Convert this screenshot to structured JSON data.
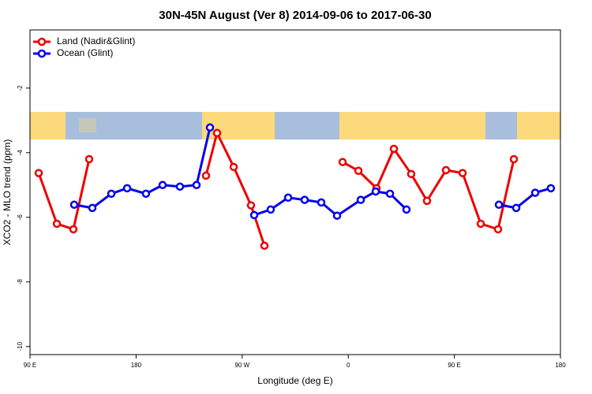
{
  "chart_data": {
    "type": "line",
    "title": "30N-45N August (Ver 8)   2014-09-06 to 2017-06-30",
    "x_label": "Longitude (deg E)",
    "y_label": "XCO2 - MLO trend (ppm)",
    "xlim": [
      90,
      540
    ],
    "ylim": [
      -10.25,
      -0.2
    ],
    "xticks": [
      {
        "value": 90,
        "label": "90 E"
      },
      180,
      {
        "value": 270,
        "label": "90 W"
      },
      {
        "value": 360,
        "label": "0"
      },
      {
        "value": 450,
        "label": "90 E"
      },
      {
        "value": 540,
        "label": "180"
      }
    ],
    "yticks": [
      -2,
      -4,
      -6,
      -8,
      -10
    ],
    "legend": "upper left",
    "series": [
      {
        "name": "Land (Nadir&Glint)",
        "color": "#ee0000",
        "x": [
          97.4,
          112.8,
          126.8,
          140.2,
          null,
          239.3,
          248.7,
          262.8,
          277.5,
          288.9,
          null,
          355.2,
          368.6,
          384.0,
          398.7,
          413.4,
          426.8,
          442.9,
          457.0,
          472.4,
          487.1,
          500.5
        ],
        "values": [
          -4.63,
          -6.2,
          -6.37,
          -4.2,
          null,
          -4.71,
          -3.39,
          -4.44,
          -5.63,
          -6.88,
          null,
          -4.29,
          -4.56,
          -5.1,
          -3.88,
          -4.66,
          -5.49,
          -4.54,
          -4.63,
          -6.2,
          -6.37,
          -4.2
        ]
      },
      {
        "name": "Ocean (Glint)",
        "color": "#0000ee",
        "x": [
          127.5,
          142.9,
          159.0,
          172.4,
          188.4,
          202.5,
          217.2,
          231.3,
          242.7,
          null,
          280.2,
          294.2,
          309.0,
          323.0,
          337.1,
          350.5,
          370.6,
          383.3,
          395.4,
          409.4,
          null,
          487.8,
          502.5,
          518.6,
          531.9
        ],
        "values": [
          -5.61,
          -5.71,
          -5.27,
          -5.1,
          -5.27,
          -5.0,
          -5.05,
          -5.0,
          -3.22,
          null,
          -5.93,
          -5.76,
          -5.39,
          -5.46,
          -5.54,
          -5.95,
          -5.46,
          -5.2,
          -5.27,
          -5.76,
          null,
          -5.61,
          -5.71,
          -5.24,
          -5.1
        ]
      }
    ]
  }
}
